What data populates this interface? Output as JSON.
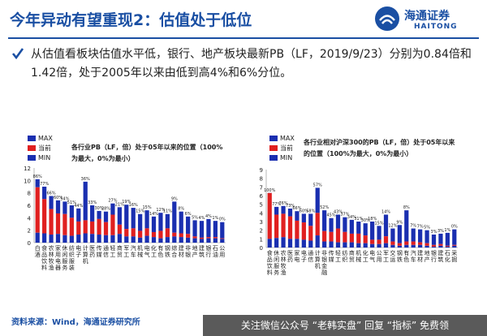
{
  "header": {
    "title": "今年异动有望重现2：估值处于低位",
    "logo_cn": "海通证券",
    "logo_en": "HAITONG"
  },
  "bullet_text": "从估值看板块估值水平低，银行、地产板块最新PB（LF，2019/9/23）分别为0.84倍和1.42倍，处于2005年以来由低到高4%和6%分位。",
  "colors": {
    "max": "#1a2fb0",
    "current": "#e02020",
    "min": "#1a2fb0",
    "brand": "#1a4fa3"
  },
  "legend": {
    "max": "MAX",
    "current": "当前",
    "min": "MIN"
  },
  "chart_data": [
    {
      "type": "bar",
      "title": "各行业PB（LF，倍）处于05年以来的位置（100%为最大，0%为最小）",
      "categories": [
        "食品饮料",
        "农林牧渔",
        "家用电器",
        "休闲服务",
        "纺织服装",
        "电子",
        "医药生物",
        "计算机",
        "传媒",
        "通信",
        "轻工制造",
        "商业贸易",
        "国防军工",
        "汽车",
        "机械设备",
        "电气设备",
        "化工",
        "有色金属",
        "钢铁",
        "综合",
        "建筑材料",
        "非银金融",
        "房地产",
        "建筑装饰",
        "银行",
        "采掘",
        "交通运输",
        "公用事业"
      ],
      "category_labels": [
        "白酒",
        "食品饮料",
        "农林牧渔",
        "家用电器",
        "休闲服务",
        "纺织服装",
        "电子",
        "计算机",
        "医药",
        "传媒",
        "通信",
        "轻工",
        "商贸",
        "军工",
        "汽车",
        "机械",
        "电气",
        "化工",
        "有色",
        "钢铁",
        "综合",
        "建材",
        "非银",
        "地产",
        "建筑",
        "银行",
        "石油",
        "公用"
      ],
      "pct_labels": [
        "86%",
        "77%",
        "66%",
        "60%",
        "54%",
        "51%",
        "44%",
        "36%",
        "33%",
        "30%",
        "28%",
        "27%",
        "21%",
        "19%",
        "16%",
        "15%",
        "15%",
        "14%",
        "12%",
        "11%",
        "9%",
        "8%",
        "6%",
        "5%",
        "4%",
        "4%",
        "1%",
        "0%"
      ],
      "series": [
        {
          "name": "MAX",
          "values": [
            10.2,
            9.0,
            7.5,
            6.8,
            6.6,
            6.0,
            5.5,
            9.8,
            6.0,
            5.1,
            5.0,
            6.3,
            5.7,
            6.1,
            5.6,
            4.6,
            5.2,
            4.2,
            4.8,
            4.6,
            6.6,
            5.0,
            4.2,
            3.6,
            3.5,
            3.8,
            3.5,
            3.3
          ]
        },
        {
          "name": "当前",
          "values": [
            8.9,
            7.0,
            5.4,
            4.7,
            4.6,
            4.0,
            3.4,
            3.6,
            3.4,
            3.8,
            3.3,
            4.5,
            2.9,
            2.2,
            2.3,
            1.9,
            2.3,
            1.7,
            1.9,
            2.3,
            1.6,
            1.5,
            1.4,
            1.0,
            0.8,
            0.9,
            0.9,
            0.7
          ]
        },
        {
          "name": "MIN",
          "values": [
            1.6,
            1.5,
            1.3,
            1.4,
            1.2,
            1.1,
            1.3,
            1.5,
            1.4,
            1.3,
            1.2,
            1.2,
            1.4,
            1.0,
            1.0,
            0.8,
            1.1,
            0.9,
            0.7,
            0.9,
            1.0,
            0.9,
            0.8,
            0.7,
            0.6,
            0.7,
            0.7,
            0.6
          ]
        }
      ],
      "y_ticks": [
        "12",
        "10",
        "8",
        "6",
        "4",
        "2",
        "0"
      ],
      "ylim": [
        0,
        12
      ]
    },
    {
      "type": "bar",
      "title": "各行业相对沪深300的PB（LF，倍）处于05年以来的位置（100%为最大，0%为最小）",
      "categories": [
        "食品饮料",
        "农林牧渔",
        "家用电器",
        "休闲服务",
        "纺织服装",
        "电子",
        "医药生物",
        "计算机",
        "传媒",
        "通信",
        "轻工制造",
        "商业贸易",
        "国防军工",
        "汽车",
        "机械设备",
        "电气设备",
        "化工",
        "有色金属",
        "钢铁",
        "综合",
        "建筑材料",
        "非银金融",
        "房地产",
        "建筑装饰",
        "银行",
        "采掘",
        "交通运输",
        "公用事业"
      ],
      "category_labels": [
        "食品饮料",
        "休闲服务",
        "农林牧渔",
        "医药",
        "家电",
        "电子",
        "通信",
        "计算机",
        "非银金融",
        "传媒",
        "轻工",
        "纺织",
        "商贸",
        "机械",
        "化工",
        "电气",
        "公用",
        "军工",
        "交运",
        "钢铁",
        "有色",
        "汽车",
        "建材",
        "地产",
        "银行",
        "建筑",
        "石化",
        "采掘"
      ],
      "pct_labels": [
        "100%",
        "77%",
        "76%",
        "73%",
        "66%",
        "60%",
        "58%",
        "57%",
        "52%",
        "45%",
        "43%",
        "37%",
        "34%",
        "31%",
        "30%",
        "18%",
        "15%",
        "14%",
        "12%",
        "9%",
        "8%",
        "7%",
        "7%",
        "5%",
        "3%",
        "3%",
        "1%",
        "0%"
      ],
      "series": [
        {
          "name": "MAX",
          "values": [
            6.3,
            4.7,
            4.8,
            4.5,
            4.2,
            3.9,
            3.9,
            6.9,
            4.3,
            3.4,
            3.8,
            3.5,
            3.2,
            3.0,
            2.8,
            3.0,
            2.5,
            3.8,
            2.2,
            2.6,
            4.3,
            2.2,
            2.1,
            2.0,
            1.5,
            1.6,
            1.7,
            2.1
          ]
        },
        {
          "name": "当前",
          "values": [
            6.3,
            3.8,
            3.9,
            3.6,
            3.1,
            2.9,
            2.5,
            4.0,
            1.9,
            1.8,
            2.2,
            1.8,
            1.6,
            1.6,
            1.4,
            0.9,
            0.9,
            1.3,
            0.7,
            0.5,
            0.7,
            0.7,
            0.6,
            0.5,
            0.3,
            0.4,
            0.2,
            0.3
          ]
        },
        {
          "name": "MIN",
          "values": [
            1.0,
            1.1,
            1.2,
            1.0,
            1.0,
            0.9,
            0.8,
            1.4,
            0.7,
            0.7,
            0.6,
            0.6,
            0.6,
            0.5,
            0.5,
            0.4,
            0.4,
            0.5,
            0.3,
            0.2,
            0.3,
            0.3,
            0.3,
            0.2,
            0.1,
            0.2,
            0.1,
            0.2
          ]
        }
      ],
      "y_ticks": [
        "9",
        "8",
        "7",
        "6",
        "5",
        "4",
        "3",
        "2",
        "1",
        "0"
      ],
      "ylim": [
        0,
        9
      ]
    }
  ],
  "source": "资料来源：Wind，海通证券研究所",
  "watermark": "关注微信公众号 “老韩实盘” 回复 “指标” 免费领"
}
